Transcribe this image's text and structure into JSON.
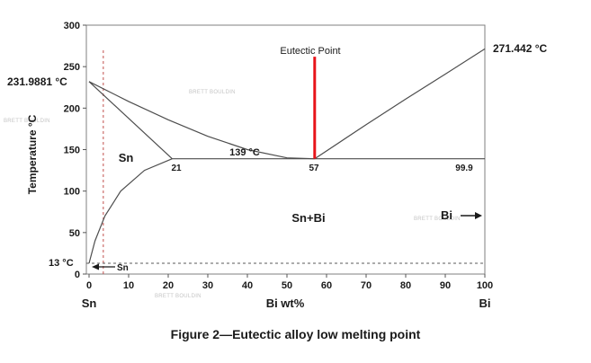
{
  "chart_data": {
    "type": "line",
    "xlabel": "Bi wt%",
    "ylabel": "Temperature °C",
    "xlim": [
      0,
      100
    ],
    "ylim": [
      0,
      300
    ],
    "x_ticks": [
      "0",
      "10",
      "20",
      "30",
      "40",
      "50",
      "60",
      "70",
      "80",
      "90",
      "100"
    ],
    "y_ticks": [
      "0",
      "50",
      "100",
      "150",
      "200",
      "250",
      "300"
    ],
    "x_end_labels": {
      "left": "Sn",
      "right": "Bi"
    },
    "y_extra_labels": {
      "sn_melting": "231.9881 °C",
      "low": "13 °C"
    },
    "series": [
      {
        "points": [
          [
            0,
            231.9881
          ],
          [
            10,
            208
          ],
          [
            20,
            186
          ],
          [
            30,
            166
          ],
          [
            40,
            150
          ],
          [
            50,
            140
          ],
          [
            57,
            139
          ]
        ]
      },
      {
        "points": [
          [
            57,
            139
          ],
          [
            70,
            180
          ],
          [
            80,
            211
          ],
          [
            90,
            241
          ],
          [
            100,
            271.442
          ]
        ]
      },
      {
        "points": [
          [
            0,
            231.9881
          ],
          [
            21,
            139
          ]
        ]
      },
      {
        "points": [
          [
            0,
            13
          ],
          [
            1.5,
            40
          ],
          [
            4,
            70
          ],
          [
            8,
            100
          ],
          [
            14,
            125
          ],
          [
            21,
            139
          ]
        ]
      },
      {
        "points": [
          [
            21,
            139
          ],
          [
            100,
            139
          ]
        ]
      }
    ],
    "eutectic": {
      "x": 57,
      "y_from": 139,
      "y_to": 262,
      "color": "#e8141a"
    },
    "reference_lines": {
      "dashed_vertical_x": 3.6,
      "dashed_horizontal_y": 13,
      "dashed_color": "#c0504d"
    },
    "annotations": {
      "eutectic_point": "Eutectic Point",
      "bi_melting": "271.442 °C",
      "eutectic_temp": "139 °C",
      "comp_21": "21",
      "comp_57": "57",
      "comp_99": "99.9",
      "region_sn": "Sn",
      "region_snbi": "Sn+Bi",
      "bi_arrow": "Bi",
      "sn_arrow": "Sn"
    },
    "watermark": "BRETT BOULDIN"
  },
  "caption": "Figure 2—Eutectic alloy low melting point"
}
